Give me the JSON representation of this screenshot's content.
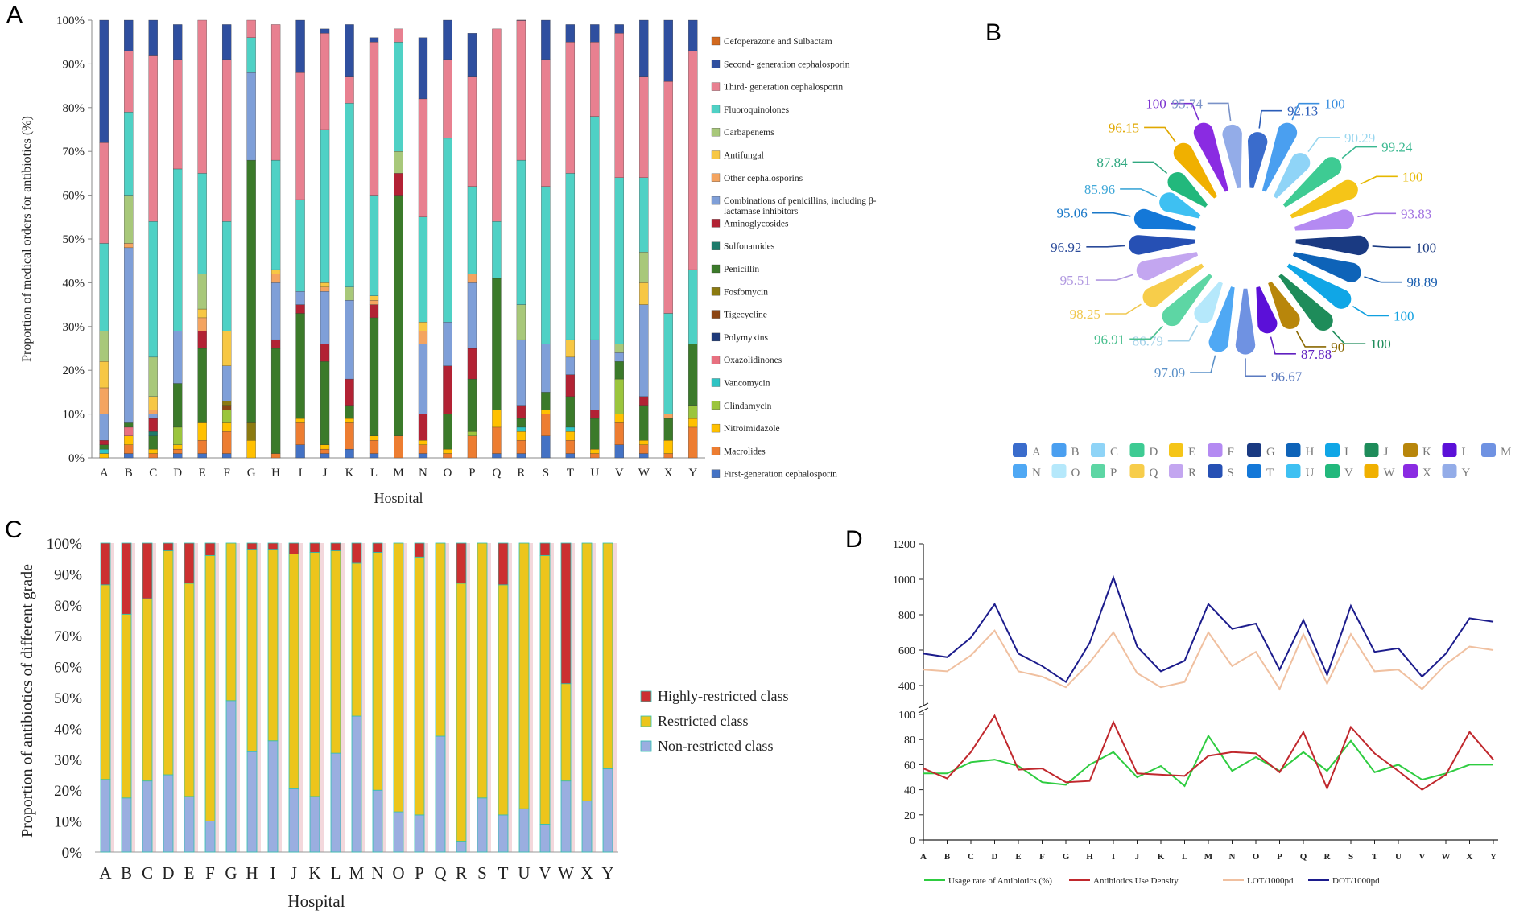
{
  "hospitals": [
    "A",
    "B",
    "C",
    "D",
    "E",
    "F",
    "G",
    "H",
    "I",
    "J",
    "K",
    "L",
    "M",
    "N",
    "O",
    "P",
    "Q",
    "R",
    "S",
    "T",
    "U",
    "V",
    "W",
    "X",
    "Y"
  ],
  "panel_a": {
    "letter": "A",
    "chart_data": {
      "type": "bar",
      "stacked": true,
      "title": "",
      "xlabel": "Hospital",
      "ylabel": "Proportion of medical orders for antibiotics (%)",
      "ylim": [
        0,
        100
      ],
      "yticks": [
        "0%",
        "10%",
        "20%",
        "30%",
        "40%",
        "50%",
        "60%",
        "70%",
        "80%",
        "90%",
        "100%"
      ],
      "categories": [
        "A",
        "B",
        "C",
        "D",
        "E",
        "F",
        "G",
        "H",
        "I",
        "J",
        "K",
        "L",
        "M",
        "N",
        "O",
        "P",
        "Q",
        "R",
        "S",
        "T",
        "U",
        "V",
        "W",
        "X",
        "Y"
      ],
      "series": [
        {
          "name": "First-generation cephalosporin",
          "color": "#4472c4",
          "values": [
            0,
            1,
            0,
            1,
            1,
            1,
            0,
            0,
            3,
            1,
            2,
            1,
            0,
            1,
            0,
            0,
            1,
            1,
            5,
            1,
            0,
            3,
            1,
            0,
            0
          ]
        },
        {
          "name": "Macrolides",
          "color": "#ed7d31",
          "values": [
            0,
            2,
            1,
            1,
            3,
            5,
            0,
            1,
            5,
            1,
            6,
            3,
            5,
            2,
            1,
            5,
            6,
            3,
            5,
            3,
            1,
            5,
            2,
            1,
            7
          ]
        },
        {
          "name": "Nitroimidazole",
          "color": "#ffc000",
          "values": [
            1,
            2,
            1,
            1,
            4,
            2,
            4,
            0,
            1,
            1,
            1,
            1,
            0,
            1,
            1,
            0,
            4,
            2,
            1,
            2,
            1,
            2,
            1,
            3,
            2
          ]
        },
        {
          "name": "Clindamycin",
          "color": "#9bc53d",
          "values": [
            0,
            0,
            0,
            4,
            0,
            3,
            0,
            0,
            0,
            0,
            0,
            0,
            0,
            0,
            0,
            1,
            0,
            0,
            0,
            0,
            0,
            8,
            0,
            0,
            3
          ]
        },
        {
          "name": "Vancomycin",
          "color": "#2ec4c4",
          "values": [
            1,
            0,
            0,
            0,
            0,
            0,
            0,
            0,
            0,
            0,
            0,
            0,
            0,
            0,
            0,
            0,
            0,
            1,
            0,
            1,
            0,
            0,
            0,
            0,
            0
          ]
        },
        {
          "name": "Oxazolidinones",
          "color": "#e87080",
          "values": [
            0,
            2,
            0,
            0,
            0,
            0,
            0,
            0,
            0,
            0,
            0,
            0,
            0,
            0,
            0,
            0,
            0,
            0,
            0,
            0,
            0,
            0,
            0,
            0,
            0
          ]
        },
        {
          "name": "Polymyxins",
          "color": "#1f3a7a",
          "values": [
            0,
            0,
            0,
            0,
            0,
            0,
            0,
            0,
            0,
            0,
            0,
            0,
            0,
            0,
            0,
            0,
            0,
            0,
            0,
            0,
            0,
            0,
            0,
            0,
            0
          ]
        },
        {
          "name": "Tigecycline",
          "color": "#8b4513",
          "values": [
            0,
            0,
            0,
            0,
            0,
            1,
            0,
            0,
            0,
            0,
            0,
            0,
            0,
            0,
            0,
            0,
            0,
            0,
            0,
            0,
            0,
            0,
            0,
            0,
            0
          ]
        },
        {
          "name": "Fosfomycin",
          "color": "#8b7a10",
          "values": [
            0,
            0,
            0,
            0,
            0,
            1,
            4,
            0,
            0,
            0,
            0,
            0,
            0,
            0,
            0,
            0,
            0,
            0,
            0,
            0,
            0,
            0,
            0,
            0,
            0
          ]
        },
        {
          "name": "Penicillin",
          "color": "#3b7a2a",
          "values": [
            1,
            1,
            3,
            10,
            17,
            0,
            60,
            24,
            24,
            19,
            3,
            27,
            55,
            0,
            8,
            12,
            30,
            2,
            4,
            7,
            7,
            4,
            8,
            5,
            14
          ]
        },
        {
          "name": "Sulfonamides",
          "color": "#1d7a6a",
          "values": [
            0,
            0,
            1,
            0,
            0,
            0,
            0,
            0,
            0,
            0,
            0,
            0,
            0,
            0,
            0,
            0,
            0,
            0,
            0,
            0,
            0,
            0,
            0,
            0,
            0
          ]
        },
        {
          "name": "Aminoglycosides",
          "color": "#b22234",
          "values": [
            1,
            0,
            3,
            0,
            4,
            0,
            0,
            2,
            2,
            4,
            6,
            3,
            5,
            6,
            11,
            7,
            0,
            3,
            0,
            5,
            2,
            0,
            2,
            0,
            0
          ]
        },
        {
          "name": "Combinations of penicillins, including β-lactamase inhibitors",
          "color": "#7f9fd8",
          "values": [
            6,
            40,
            1,
            12,
            0,
            8,
            20,
            13,
            3,
            12,
            18,
            0,
            0,
            16,
            10,
            15,
            0,
            15,
            11,
            4,
            16,
            2,
            21,
            0,
            0
          ]
        },
        {
          "name": "Other cephalosporins",
          "color": "#f4a460",
          "values": [
            6,
            1,
            1,
            0,
            3,
            0,
            0,
            2,
            0,
            1,
            0,
            1,
            0,
            3,
            0,
            2,
            0,
            0,
            0,
            0,
            0,
            0,
            0,
            1,
            0
          ]
        },
        {
          "name": "Antifungal",
          "color": "#f7c744",
          "values": [
            6,
            0,
            3,
            0,
            2,
            8,
            0,
            1,
            0,
            1,
            0,
            1,
            0,
            2,
            0,
            0,
            0,
            0,
            0,
            4,
            0,
            0,
            5,
            0,
            0
          ]
        },
        {
          "name": "Carbapenems",
          "color": "#a8c87a",
          "values": [
            7,
            11,
            9,
            0,
            8,
            0,
            0,
            0,
            0,
            0,
            3,
            0,
            5,
            0,
            0,
            0,
            0,
            8,
            0,
            0,
            0,
            2,
            7,
            0,
            0
          ]
        },
        {
          "name": "Fluoroquinolones",
          "color": "#4fd1c5",
          "values": [
            20,
            19,
            31,
            37,
            23,
            25,
            8,
            25,
            21,
            35,
            42,
            23,
            25,
            24,
            42,
            20,
            13,
            33,
            36,
            38,
            51,
            38,
            17,
            23,
            17
          ]
        },
        {
          "name": "Third- generation cephalosporin",
          "color": "#e88090",
          "values": [
            23,
            14,
            38,
            25,
            35,
            37,
            4,
            31,
            29,
            22,
            6,
            35,
            3,
            27,
            18,
            25,
            44,
            32,
            29,
            30,
            17,
            33,
            23,
            53,
            50
          ]
        },
        {
          "name": "Second- generation cephalosporin",
          "color": "#2f4f9f",
          "values": [
            28,
            7,
            9,
            8,
            0,
            8,
            0,
            0,
            12,
            1,
            12,
            1,
            0,
            14,
            9,
            10,
            0,
            1,
            9,
            4,
            4,
            2,
            14,
            14,
            7
          ]
        },
        {
          "name": "Cefoperazone and Sulbactam",
          "color": "#d2691e",
          "values": [
            0,
            0,
            0,
            0,
            0,
            0,
            0,
            0,
            0,
            0,
            0,
            0,
            0,
            0,
            0,
            0,
            0,
            0,
            0,
            0,
            0,
            0,
            0,
            0,
            0
          ]
        }
      ]
    }
  },
  "panel_b": {
    "letter": "B",
    "chart_data": {
      "type": "radial-petal",
      "legend_position": "bottom",
      "categories": [
        "A",
        "B",
        "C",
        "D",
        "E",
        "F",
        "G",
        "H",
        "I",
        "J",
        "K",
        "L",
        "M",
        "N",
        "O",
        "P",
        "Q",
        "R",
        "S",
        "T",
        "U",
        "V",
        "W",
        "X",
        "Y"
      ],
      "values": [
        "92.13",
        "100",
        "90.29",
        "99.24",
        "100",
        "93.83",
        "100",
        "98.89",
        "100",
        "100",
        "90",
        "87.88",
        "96.67",
        "97.09",
        "86.79",
        "96.91",
        "98.25",
        "95.51",
        "96.92",
        "95.06",
        "85.96",
        "87.84",
        "96.15",
        "100",
        "95.74"
      ],
      "colors": [
        "#3a6ccc",
        "#4a9ff0",
        "#8fd4f7",
        "#3ecb93",
        "#f5c518",
        "#b48af2",
        "#1a3a82",
        "#0e63b8",
        "#10a6e6",
        "#1e8c5a",
        "#b8860b",
        "#5b10d8",
        "#6f92e2",
        "#4fa8f4",
        "#b5e8fb",
        "#5dd6a4",
        "#f7cd4a",
        "#c3a6f0",
        "#2650b4",
        "#1478d8",
        "#3ec0f2",
        "#22b87c",
        "#f0b000",
        "#8a2be2",
        "#93ace8"
      ],
      "label_colors": [
        "#2a5cb8",
        "#3a8fe0",
        "#9ad7ef",
        "#3ab890",
        "#e6b800",
        "#a070e0",
        "#1a3a82",
        "#1a5fb0",
        "#10a0e0",
        "#1e8c5a",
        "#8a6800",
        "#6020c0",
        "#5a7ac0",
        "#5a90c8",
        "#a0d0e8",
        "#4cc090",
        "#f0c850",
        "#b098e0",
        "#2a4a9a",
        "#1a78c8",
        "#40a8d8",
        "#30a880",
        "#e0a800",
        "#7a30d0",
        "#7a92c8"
      ]
    }
  },
  "panel_c": {
    "letter": "C",
    "chart_data": {
      "type": "bar",
      "stacked": true,
      "xlabel": "Hospital",
      "ylabel": "Proportion of antibiotics of different grade",
      "ylim": [
        0,
        100
      ],
      "yticks": [
        "0%",
        "10%",
        "20%",
        "30%",
        "40%",
        "50%",
        "60%",
        "70%",
        "80%",
        "90%",
        "100%"
      ],
      "categories": [
        "A",
        "B",
        "C",
        "D",
        "E",
        "F",
        "G",
        "H",
        "I",
        "J",
        "K",
        "L",
        "M",
        "N",
        "O",
        "P",
        "Q",
        "R",
        "S",
        "T",
        "U",
        "V",
        "W",
        "X",
        "Y"
      ],
      "series": [
        {
          "name": "Non-restricted class",
          "color": "#9aaee0",
          "values": [
            23.5,
            17.5,
            23,
            25,
            18,
            10,
            49,
            32.5,
            36,
            20.5,
            18,
            32,
            44,
            20,
            13,
            12,
            37.5,
            3.5,
            17.5,
            12,
            14,
            9,
            23,
            16.5,
            27
          ]
        },
        {
          "name": "Restricted class",
          "color": "#ecc51c",
          "values": [
            63,
            59.5,
            59,
            72.5,
            69,
            86,
            51,
            65.5,
            62,
            76,
            79,
            65.5,
            49.5,
            77,
            87,
            83.5,
            62.5,
            83.5,
            82.5,
            74.5,
            86,
            87,
            31.5,
            83.5,
            73
          ]
        },
        {
          "name": "Highly-restricted class",
          "color": "#cc3030",
          "values": [
            13.5,
            23,
            18,
            2.5,
            13,
            4,
            0,
            2,
            2,
            3.5,
            3,
            2.5,
            6.5,
            3,
            0,
            4.5,
            0,
            13,
            0,
            13.5,
            0,
            4,
            45.5,
            0,
            0
          ]
        }
      ],
      "legend": [
        "Highly-restricted class",
        "Restricted class",
        "Non-restricted class"
      ]
    }
  },
  "panel_d": {
    "letter": "D",
    "chart_data": {
      "type": "line",
      "broken_axis": true,
      "categories": [
        "A",
        "B",
        "C",
        "D",
        "E",
        "F",
        "G",
        "H",
        "I",
        "J",
        "K",
        "L",
        "M",
        "N",
        "O",
        "P",
        "Q",
        "R",
        "S",
        "T",
        "U",
        "V",
        "W",
        "X",
        "Y"
      ],
      "ylim_upper": [
        400,
        1200
      ],
      "yticks_upper": [
        "400",
        "600",
        "800",
        "1000",
        "1200"
      ],
      "ylim_lower": [
        0,
        100
      ],
      "yticks_lower": [
        "0",
        "20",
        "40",
        "60",
        "80",
        "100"
      ],
      "series": [
        {
          "name": "Usage rate of Antibiotics (%)",
          "color": "#2ecc40",
          "axis": "lower",
          "values": [
            53,
            53,
            62,
            64,
            59,
            46,
            44,
            60,
            70,
            50,
            59,
            43,
            83,
            55,
            66,
            55,
            70,
            55,
            79,
            54,
            60,
            48,
            53,
            60,
            60
          ]
        },
        {
          "name": "Antibiotics Use Density",
          "color": "#c0282d",
          "axis": "lower",
          "values": [
            57,
            49,
            70,
            99,
            56,
            57,
            46,
            47,
            94,
            53,
            52,
            51,
            67,
            70,
            69,
            54,
            86,
            41,
            90,
            69,
            55,
            40,
            52,
            86,
            64
          ]
        },
        {
          "name": "LOT/1000pd",
          "color": "#f0c0a0",
          "axis": "upper",
          "values": [
            490,
            480,
            570,
            710,
            480,
            450,
            390,
            530,
            700,
            470,
            390,
            420,
            700,
            510,
            590,
            380,
            690,
            410,
            690,
            480,
            490,
            380,
            520,
            620,
            600
          ]
        },
        {
          "name": "DOT/1000pd",
          "color": "#1c1c8c",
          "axis": "upper",
          "values": [
            580,
            560,
            670,
            860,
            580,
            510,
            420,
            640,
            1010,
            620,
            480,
            540,
            860,
            720,
            750,
            490,
            770,
            460,
            850,
            590,
            610,
            450,
            580,
            780,
            760
          ]
        }
      ]
    }
  }
}
